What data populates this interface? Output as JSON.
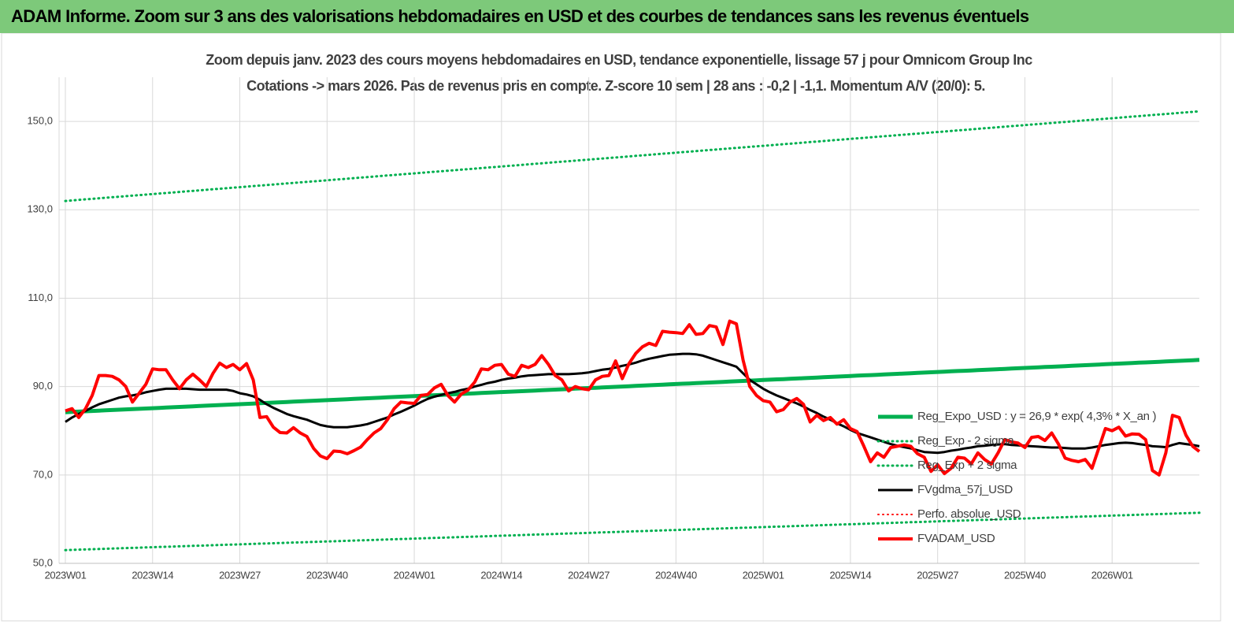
{
  "header": {
    "title": "ADAM Informe. Zoom sur 3 ans des valorisations hebdomadaires en USD et des courbes de tendances sans les revenus éventuels"
  },
  "chart_data": {
    "type": "line",
    "title": "Zoom depuis janv. 2023 des cours moyens hebdomadaires en USD, tendance exponentielle, lissage 57 j pour Omnicom Group Inc",
    "subtitle": "Cotations -> mars 2026. Pas de revenus pris en  compte. Z-score 10 sem  | 28 ans : -0,2 | -1,1. Momentum A/V (20/0): 5.",
    "categories": [
      "2023W01",
      null,
      null,
      null,
      null,
      null,
      null,
      null,
      null,
      null,
      null,
      null,
      null,
      "2023W14",
      null,
      null,
      null,
      null,
      null,
      null,
      null,
      null,
      null,
      null,
      null,
      null,
      "2023W27",
      null,
      null,
      null,
      null,
      null,
      null,
      null,
      null,
      null,
      null,
      null,
      null,
      "2023W40",
      null,
      null,
      null,
      null,
      null,
      null,
      null,
      null,
      null,
      null,
      null,
      null,
      "2024W01",
      null,
      null,
      null,
      null,
      null,
      null,
      null,
      null,
      null,
      null,
      null,
      null,
      "2024W14",
      null,
      null,
      null,
      null,
      null,
      null,
      null,
      null,
      null,
      null,
      null,
      null,
      "2024W27",
      null,
      null,
      null,
      null,
      null,
      null,
      null,
      null,
      null,
      null,
      null,
      null,
      "2024W40",
      null,
      null,
      null,
      null,
      null,
      null,
      null,
      null,
      null,
      null,
      null,
      null,
      "2025W01",
      null,
      null,
      null,
      null,
      null,
      null,
      null,
      null,
      null,
      null,
      null,
      null,
      "2025W14",
      null,
      null,
      null,
      null,
      null,
      null,
      null,
      null,
      null,
      null,
      null,
      null,
      "2025W27",
      null,
      null,
      null,
      null,
      null,
      null,
      null,
      null,
      null,
      null,
      null,
      null,
      "2025W40",
      null,
      null,
      null,
      null,
      null,
      null,
      null,
      null,
      null,
      null,
      null,
      null,
      "2026W01",
      null,
      null,
      null,
      null,
      null,
      null,
      null,
      null,
      null,
      null,
      null,
      null,
      null
    ],
    "ylim": [
      50,
      160
    ],
    "yticks": [
      {
        "value": 50,
        "label": "50,0"
      },
      {
        "value": 70,
        "label": "70,0"
      },
      {
        "value": 90,
        "label": "90,0"
      },
      {
        "value": 110,
        "label": "110,0"
      },
      {
        "value": 130,
        "label": "130,0"
      },
      {
        "value": 150,
        "label": "150,0"
      }
    ],
    "grid": true,
    "legend": "lower right",
    "series": [
      {
        "name": "Reg_Expo_USD : y = 26,9 * exp( 4,3% *  X_an )",
        "color": "#00b050",
        "style": "solid",
        "values": [
          84.2,
          84.27,
          84.34,
          84.41,
          84.48,
          84.55,
          84.62,
          84.69,
          84.76,
          84.83,
          84.9,
          84.97,
          85.04,
          85.11,
          85.18,
          85.25,
          85.32,
          85.39,
          85.46,
          85.53,
          85.6,
          85.67,
          85.74,
          85.81,
          85.88,
          85.95,
          86.02,
          86.09,
          86.16,
          86.23,
          86.3,
          86.37,
          86.44,
          86.51,
          86.58,
          86.65,
          86.72,
          86.79,
          86.86,
          86.93,
          87.0,
          87.07,
          87.14,
          87.21,
          87.28,
          87.35,
          87.42,
          87.49,
          87.56,
          87.63,
          87.7,
          87.77,
          87.84,
          87.91,
          87.98,
          88.05,
          88.12,
          88.19,
          88.26,
          88.33,
          88.4,
          88.47,
          88.54,
          88.61,
          88.68,
          88.75,
          88.82,
          88.89,
          88.96,
          89.03,
          89.1,
          89.17,
          89.24,
          89.31,
          89.38,
          89.45,
          89.52,
          89.59,
          89.66,
          89.73,
          89.8,
          89.87,
          89.94,
          90.01,
          90.08,
          90.15,
          90.22,
          90.29,
          90.36,
          90.43,
          90.5,
          90.57,
          90.64,
          90.71,
          90.78,
          90.85,
          90.92,
          90.99,
          91.06,
          91.13,
          91.2,
          91.27,
          91.34,
          91.41,
          91.48,
          91.55,
          91.62,
          91.69,
          91.76,
          91.83,
          91.9,
          91.97,
          92.04,
          92.11,
          92.18,
          92.25,
          92.32,
          92.39,
          92.46,
          92.53,
          92.6,
          92.67,
          92.74,
          92.81,
          92.88,
          92.95,
          93.02,
          93.09,
          93.16,
          93.23,
          93.3,
          93.37,
          93.44,
          93.51,
          93.58,
          93.65,
          93.72,
          93.79,
          93.86,
          93.93,
          94.0,
          94.07,
          94.14,
          94.21,
          94.28,
          94.35,
          94.42,
          94.49,
          94.56,
          94.63,
          94.7,
          94.77,
          94.84,
          94.91,
          94.98,
          95.05,
          95.12,
          95.19,
          95.26,
          95.33,
          95.4,
          95.47,
          95.54,
          95.61,
          95.68,
          95.75,
          95.82,
          95.89,
          95.96,
          96.03
        ]
      },
      {
        "name": "Reg_Exp - 2 sigma",
        "color": "#00b050",
        "style": "dotted",
        "values": [
          53.0,
          53.05,
          53.1,
          53.15,
          53.2,
          53.25,
          53.3,
          53.35,
          53.4,
          53.45,
          53.5,
          53.55,
          53.6,
          53.65,
          53.7,
          53.75,
          53.8,
          53.85,
          53.9,
          53.95,
          54.0,
          54.05,
          54.1,
          54.15,
          54.2,
          54.25,
          54.3,
          54.35,
          54.4,
          54.45,
          54.5,
          54.55,
          54.6,
          54.65,
          54.7,
          54.75,
          54.8,
          54.85,
          54.9,
          54.95,
          55.0,
          55.05,
          55.1,
          55.15,
          55.2,
          55.25,
          55.3,
          55.35,
          55.4,
          55.45,
          55.5,
          55.55,
          55.6,
          55.65,
          55.7,
          55.75,
          55.8,
          55.85,
          55.9,
          55.95,
          56.0,
          56.05,
          56.1,
          56.15,
          56.2,
          56.25,
          56.3,
          56.35,
          56.4,
          56.45,
          56.5,
          56.55,
          56.6,
          56.65,
          56.7,
          56.75,
          56.8,
          56.85,
          56.9,
          56.95,
          57.0,
          57.05,
          57.1,
          57.15,
          57.2,
          57.25,
          57.3,
          57.35,
          57.4,
          57.45,
          57.5,
          57.55,
          57.6,
          57.65,
          57.7,
          57.75,
          57.8,
          57.85,
          57.9,
          57.95,
          58.0,
          58.05,
          58.1,
          58.15,
          58.2,
          58.25,
          58.3,
          58.35,
          58.4,
          58.45,
          58.5,
          58.55,
          58.6,
          58.65,
          58.7,
          58.75,
          58.8,
          58.85,
          58.9,
          58.95,
          59.0,
          59.05,
          59.1,
          59.15,
          59.2,
          59.25,
          59.3,
          59.35,
          59.4,
          59.45,
          59.5,
          59.55,
          59.6,
          59.65,
          59.7,
          59.75,
          59.8,
          59.85,
          59.9,
          59.95,
          60.0,
          60.05,
          60.1,
          60.15,
          60.2,
          60.25,
          60.3,
          60.35,
          60.4,
          60.45,
          60.5,
          60.55,
          60.6,
          60.65,
          60.7,
          60.75,
          60.8,
          60.85,
          60.9,
          60.95,
          61.0,
          61.05,
          61.1,
          61.15,
          61.2,
          61.25,
          61.3,
          61.35,
          61.4,
          61.45
        ]
      },
      {
        "name": "Reg_Exp + 2 sigma",
        "color": "#00b050",
        "style": "dotted",
        "values": [
          132.0,
          132.12,
          132.24,
          132.36,
          132.48,
          132.6,
          132.72,
          132.84,
          132.96,
          133.08,
          133.2,
          133.32,
          133.44,
          133.56,
          133.68,
          133.8,
          133.92,
          134.04,
          134.16,
          134.28,
          134.4,
          134.52,
          134.64,
          134.76,
          134.88,
          135.0,
          135.12,
          135.24,
          135.36,
          135.48,
          135.6,
          135.72,
          135.84,
          135.96,
          136.08,
          136.2,
          136.32,
          136.44,
          136.56,
          136.68,
          136.8,
          136.92,
          137.04,
          137.16,
          137.28,
          137.4,
          137.52,
          137.64,
          137.76,
          137.88,
          138.0,
          138.12,
          138.24,
          138.36,
          138.48,
          138.6,
          138.72,
          138.84,
          138.96,
          139.08,
          139.2,
          139.32,
          139.44,
          139.56,
          139.68,
          139.8,
          139.92,
          140.04,
          140.16,
          140.28,
          140.4,
          140.52,
          140.64,
          140.76,
          140.88,
          141.0,
          141.12,
          141.24,
          141.36,
          141.48,
          141.6,
          141.72,
          141.84,
          141.96,
          142.08,
          142.2,
          142.32,
          142.44,
          142.56,
          142.68,
          142.8,
          142.92,
          143.04,
          143.16,
          143.28,
          143.4,
          143.52,
          143.64,
          143.76,
          143.88,
          144.0,
          144.12,
          144.24,
          144.36,
          144.48,
          144.6,
          144.72,
          144.84,
          144.96,
          145.08,
          145.2,
          145.32,
          145.44,
          145.56,
          145.68,
          145.8,
          145.92,
          146.04,
          146.16,
          146.28,
          146.4,
          146.52,
          146.64,
          146.76,
          146.88,
          147.0,
          147.12,
          147.24,
          147.36,
          147.48,
          147.6,
          147.72,
          147.84,
          147.96,
          148.08,
          148.2,
          148.32,
          148.44,
          148.56,
          148.68,
          148.8,
          148.92,
          149.04,
          149.16,
          149.28,
          149.4,
          149.52,
          149.64,
          149.76,
          149.88,
          150.0,
          150.12,
          150.24,
          150.36,
          150.48,
          150.6,
          150.72,
          150.84,
          150.96,
          151.08,
          151.2,
          151.32,
          151.44,
          151.56,
          151.68,
          151.8,
          151.92,
          152.04,
          152.16,
          152.28
        ]
      },
      {
        "name": "FVgdma_57j_USD",
        "color": "#000000",
        "style": "solid",
        "values": [
          82,
          83,
          83.8,
          84.5,
          85.3,
          86,
          86.5,
          87,
          87.5,
          87.8,
          88,
          88.3,
          88.7,
          89,
          89.3,
          89.5,
          89.5,
          89.5,
          89.5,
          89.4,
          89.3,
          89.3,
          89.3,
          89.3,
          89.3,
          89,
          88.5,
          88.2,
          87.8,
          87,
          86,
          85.2,
          84.5,
          83.8,
          83.3,
          82.9,
          82.5,
          81.9,
          81.3,
          81,
          80.8,
          80.8,
          80.8,
          81,
          81.2,
          81.5,
          82,
          82.5,
          83,
          83.7,
          84.3,
          85,
          85.7,
          86.5,
          87.2,
          87.7,
          88.1,
          88.5,
          88.8,
          89.2,
          89.5,
          90,
          90.4,
          90.8,
          91.1,
          91.5,
          91.8,
          92,
          92.3,
          92.5,
          92.6,
          92.7,
          92.8,
          92.8,
          92.8,
          92.8,
          92.9,
          93,
          93.2,
          93.5,
          93.8,
          94,
          94.3,
          94.7,
          95,
          95.4,
          95.9,
          96.3,
          96.6,
          96.9,
          97.2,
          97.3,
          97.4,
          97.4,
          97.3,
          97,
          96.5,
          96,
          95.5,
          95,
          94.5,
          93,
          91.5,
          90.5,
          89.5,
          88.7,
          88,
          87.4,
          86.8,
          86.2,
          85.5,
          84.7,
          84,
          83.2,
          82.5,
          81.7,
          81,
          80.2,
          79.5,
          79,
          78.5,
          78,
          77.5,
          77,
          76.6,
          76.3,
          76,
          75.6,
          75.2,
          75.1,
          75,
          75.2,
          75.5,
          75.7,
          76,
          76.2,
          76.5,
          76.6,
          76.8,
          76.9,
          77,
          76.8,
          76.7,
          76.6,
          76.5,
          76.4,
          76.3,
          76.2,
          76.2,
          76.1,
          76,
          76,
          76,
          76.2,
          76.5,
          76.8,
          77,
          77.2,
          77.3,
          77.2,
          77,
          76.8,
          76.5,
          76.4,
          76.3,
          76.8,
          77.2,
          77,
          76.8,
          76.5
        ]
      },
      {
        "name": "Perfo. absolue_USD",
        "color": "#ff0000",
        "style": "dotted"
      },
      {
        "name": "FVADAM_USD",
        "color": "#ff0000",
        "style": "solid",
        "values": [
          84.5,
          85,
          83,
          85,
          88,
          92.5,
          92.5,
          92.3,
          91.5,
          90,
          86.5,
          88.5,
          90.5,
          94,
          93.8,
          93.8,
          91.5,
          89.5,
          91.5,
          92.8,
          91.5,
          90,
          93,
          95.3,
          94.3,
          95,
          93.8,
          95.2,
          91.5,
          83,
          83.2,
          80.8,
          79.6,
          79.5,
          80.7,
          79.5,
          78.7,
          76,
          74.3,
          73.7,
          75.4,
          75.3,
          74.8,
          75.5,
          76.3,
          78,
          79.5,
          80.5,
          82.5,
          85,
          86.5,
          86.3,
          86.2,
          88,
          88.2,
          89.7,
          90.5,
          88,
          86.5,
          88.3,
          89.2,
          91,
          94,
          93.8,
          94.8,
          95,
          92.8,
          92.3,
          94.8,
          94.3,
          95,
          97,
          95,
          92.5,
          91.5,
          89,
          90,
          89.5,
          89.3,
          91.5,
          92.3,
          92.5,
          95.8,
          91.8,
          95.2,
          97.5,
          99,
          99.8,
          99.3,
          102.5,
          102.3,
          102.2,
          102,
          104,
          101.8,
          102,
          103.8,
          103.5,
          99.5,
          104.8,
          104.2,
          96,
          90,
          88,
          86.8,
          86.5,
          84.3,
          84.8,
          86.5,
          87.3,
          86,
          82,
          83.5,
          82.3,
          83,
          81.5,
          82.5,
          80.5,
          79.8,
          76.5,
          73,
          75,
          74,
          76.2,
          76.5,
          76.8,
          76.5,
          74.8,
          74,
          70.8,
          72.3,
          70.3,
          71.5,
          74,
          73.8,
          72.5,
          75,
          73.5,
          72.5,
          75,
          78,
          77.5,
          77.2,
          76.2,
          78.5,
          78.7,
          77.8,
          79.5,
          77,
          73.8,
          73.3,
          73,
          73.5,
          71.5,
          76,
          80.5,
          80,
          80.8,
          78.8,
          79.3,
          79.2,
          78,
          71,
          70,
          75,
          83.5,
          83,
          79,
          76.5,
          75.3
        ]
      }
    ]
  }
}
